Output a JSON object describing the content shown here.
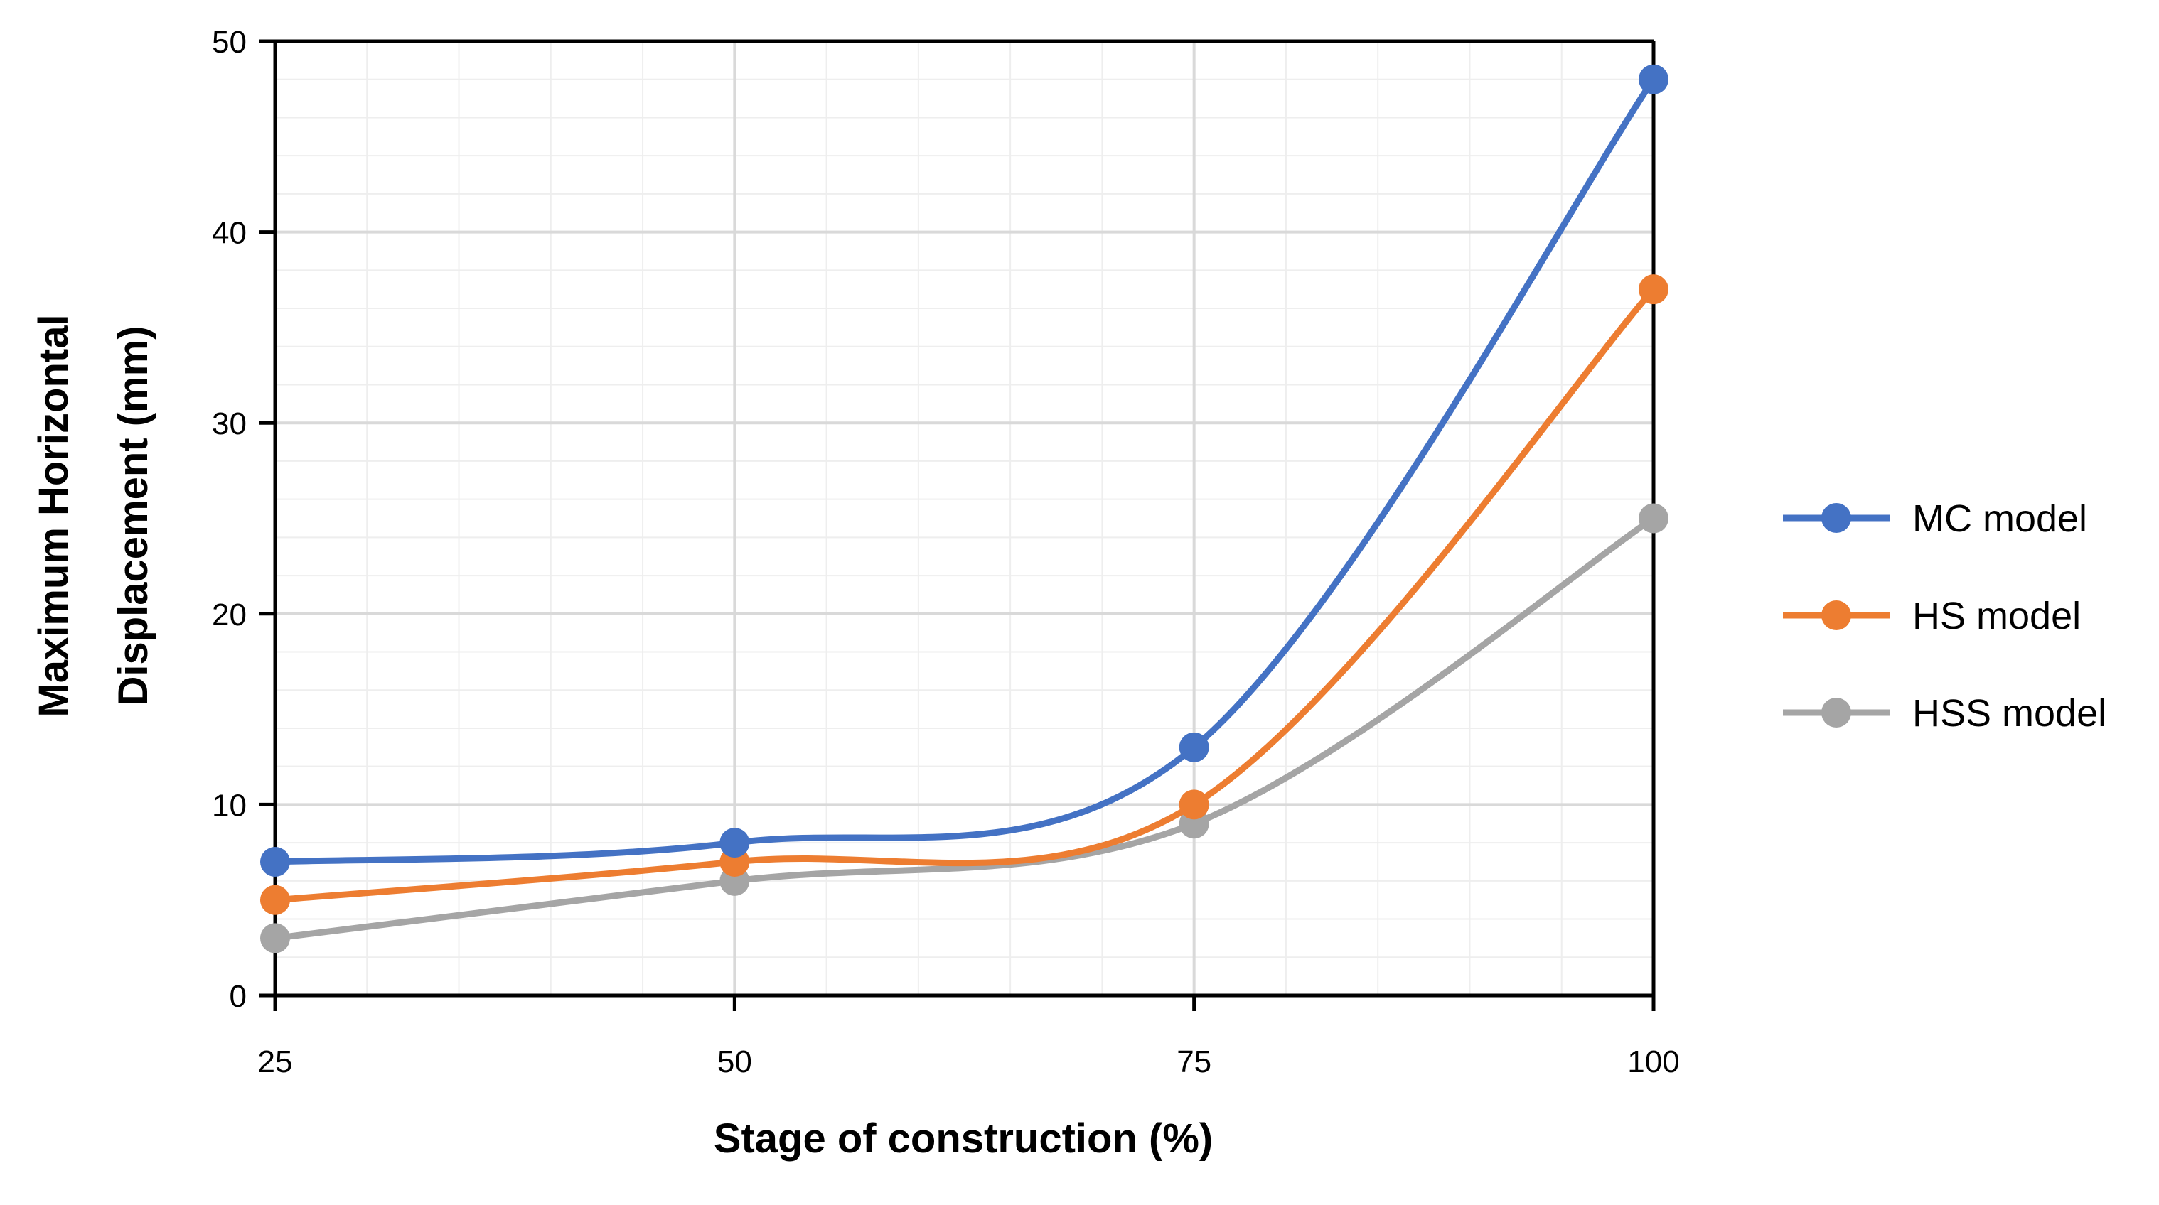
{
  "chart_data": {
    "type": "line",
    "x": [
      25,
      50,
      75,
      100
    ],
    "xticks": [
      "25",
      "50",
      "75",
      "100"
    ],
    "yticks": [
      "0",
      "10",
      "20",
      "30",
      "40",
      "50"
    ],
    "series": [
      {
        "name": "MC model",
        "color": "#4472C4",
        "values": [
          7,
          8,
          13,
          48
        ]
      },
      {
        "name": "HS model",
        "color": "#ED7D31",
        "values": [
          5,
          7,
          10,
          37
        ]
      },
      {
        "name": "HSS model",
        "color": "#A5A5A5",
        "values": [
          3,
          6,
          9,
          25
        ]
      }
    ],
    "xlabel": "Stage of construction (%)",
    "ylabel_line1": "Maximum Horizontal",
    "ylabel_line2": "Displacement (mm)",
    "xlim": [
      25,
      100
    ],
    "ylim": [
      0,
      50
    ],
    "grid": true,
    "smooth": true,
    "legend_position": "right"
  }
}
